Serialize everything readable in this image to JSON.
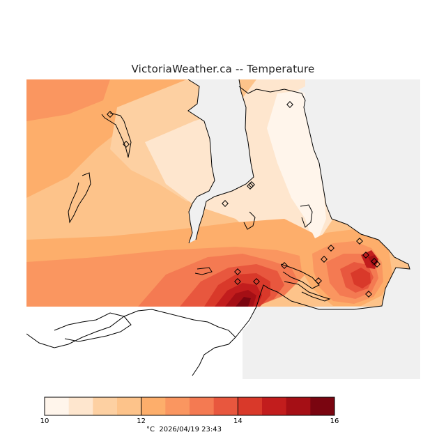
{
  "title": "VictoriaWeather.ca -- Temperature",
  "legend": {
    "min": 10,
    "max": 16,
    "labeled_ticks": [
      "10",
      "12",
      "14",
      "16"
    ],
    "colors": [
      "#fff5eb",
      "#fee6ce",
      "#fdd0a2",
      "#fdc38a",
      "#fdae6b",
      "#fa9660",
      "#f47a52",
      "#e8573e",
      "#d9392a",
      "#c21d1d",
      "#a50f15",
      "#7a0510"
    ]
  },
  "footer": {
    "unit": "°C",
    "timestamp": "2026/04/19 23:43"
  },
  "stations": [
    {
      "id": "s1"
    },
    {
      "id": "s2"
    },
    {
      "id": "s3"
    },
    {
      "id": "s4"
    },
    {
      "id": "s5"
    },
    {
      "id": "s6"
    },
    {
      "id": "s7"
    },
    {
      "id": "s8"
    },
    {
      "id": "s9"
    },
    {
      "id": "s10"
    },
    {
      "id": "s11"
    },
    {
      "id": "s12"
    },
    {
      "id": "s13"
    },
    {
      "id": "s14"
    },
    {
      "id": "s15"
    },
    {
      "id": "s16"
    },
    {
      "id": "s17"
    },
    {
      "id": "s18"
    }
  ]
}
